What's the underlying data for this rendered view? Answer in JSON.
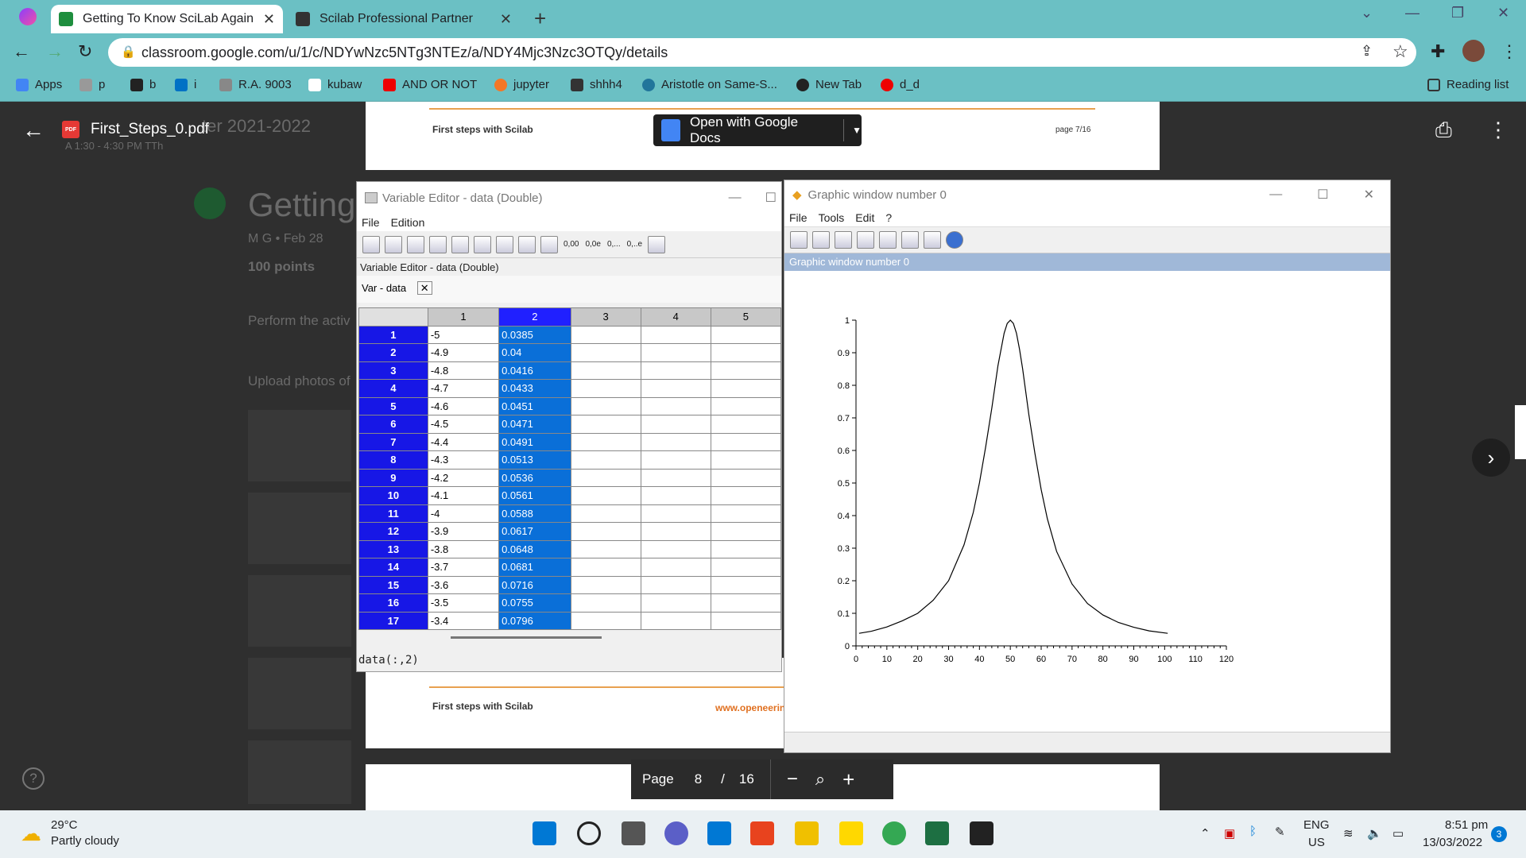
{
  "browser": {
    "tabs": [
      {
        "title": "Getting To Know SciLab Again",
        "active": true
      },
      {
        "title": "Scilab Professional Partner",
        "active": false
      }
    ],
    "url": "classroom.google.com/u/1/c/NDYwNzc5NTg3NTEz/a/NDY4Mjc3Nzc3OTQy/details",
    "bookmarks": [
      "Apps",
      "p",
      "b",
      "i",
      "R.A. 9003",
      "kubaw",
      "AND OR NOT",
      "jupyter",
      "shhh4",
      "Aristotle on Same-S...",
      "New Tab",
      "d_d"
    ],
    "reading_list": "Reading list"
  },
  "classroom": {
    "header_ghost": "ter 2021-2022",
    "header_sub": "A 1:30 - 4:30 PM TTh",
    "title": "Getting",
    "meta": "M G • Feb 28",
    "points": "100 points",
    "instr1": "Perform the activ",
    "instr2": "Upload photos of"
  },
  "pdf": {
    "filename": "First_Steps_0.pdf",
    "open_with": "Open with Google Docs",
    "page_header_left": "First steps with Scilab",
    "page_header_right": "page 7/16",
    "page_footer_left": "First steps with Scilab",
    "page_footer_right": "www.openeerin",
    "page_label": "Page",
    "page_current": "8",
    "page_sep": "/",
    "page_total": "16"
  },
  "variable_editor": {
    "title": "Variable Editor - data  (Double)",
    "menu": [
      "File",
      "Edition"
    ],
    "toolbar_text": [
      "0,00",
      "0,0e",
      "0,...",
      "0,..e"
    ],
    "header": "Variable Editor - data  (Double)",
    "tab": "Var - data",
    "columns": [
      "1",
      "2",
      "3",
      "4",
      "5"
    ],
    "rows": [
      {
        "r": "1",
        "c1": "-5",
        "c2": "0.0385"
      },
      {
        "r": "2",
        "c1": "-4.9",
        "c2": "0.04"
      },
      {
        "r": "3",
        "c1": "-4.8",
        "c2": "0.0416"
      },
      {
        "r": "4",
        "c1": "-4.7",
        "c2": "0.0433"
      },
      {
        "r": "5",
        "c1": "-4.6",
        "c2": "0.0451"
      },
      {
        "r": "6",
        "c1": "-4.5",
        "c2": "0.0471"
      },
      {
        "r": "7",
        "c1": "-4.4",
        "c2": "0.0491"
      },
      {
        "r": "8",
        "c1": "-4.3",
        "c2": "0.0513"
      },
      {
        "r": "9",
        "c1": "-4.2",
        "c2": "0.0536"
      },
      {
        "r": "10",
        "c1": "-4.1",
        "c2": "0.0561"
      },
      {
        "r": "11",
        "c1": "-4",
        "c2": "0.0588"
      },
      {
        "r": "12",
        "c1": "-3.9",
        "c2": "0.0617"
      },
      {
        "r": "13",
        "c1": "-3.8",
        "c2": "0.0648"
      },
      {
        "r": "14",
        "c1": "-3.7",
        "c2": "0.0681"
      },
      {
        "r": "15",
        "c1": "-3.6",
        "c2": "0.0716"
      },
      {
        "r": "16",
        "c1": "-3.5",
        "c2": "0.0755"
      },
      {
        "r": "17",
        "c1": "-3.4",
        "c2": "0.0796"
      }
    ],
    "command": "data(:,2)"
  },
  "graphic_window": {
    "title": "Graphic window number 0",
    "menu": [
      "File",
      "Tools",
      "Edit",
      "?"
    ],
    "bar": "Graphic window number 0"
  },
  "chart_data": {
    "type": "line",
    "title": "",
    "xlabel": "",
    "ylabel": "",
    "xlim": [
      0,
      120
    ],
    "ylim": [
      0,
      1
    ],
    "xticks": [
      "0",
      "10",
      "20",
      "30",
      "40",
      "50",
      "60",
      "70",
      "80",
      "90",
      "100",
      "110",
      "120"
    ],
    "yticks": [
      "0",
      "0.1",
      "0.2",
      "0.3",
      "0.4",
      "0.5",
      "0.6",
      "0.7",
      "0.8",
      "0.9",
      "1"
    ],
    "grid": false,
    "series": [
      {
        "x": [
          1,
          5,
          10,
          15,
          20,
          25,
          30,
          35,
          38,
          40,
          42,
          44,
          46,
          48,
          49,
          50,
          51,
          52,
          53,
          54,
          56,
          58,
          60,
          62,
          65,
          70,
          75,
          80,
          85,
          90,
          95,
          101
        ],
        "y": [
          0.0385,
          0.045,
          0.058,
          0.077,
          0.1,
          0.14,
          0.2,
          0.31,
          0.41,
          0.5,
          0.61,
          0.73,
          0.86,
          0.96,
          0.99,
          1.0,
          0.99,
          0.96,
          0.91,
          0.85,
          0.71,
          0.59,
          0.48,
          0.39,
          0.29,
          0.19,
          0.13,
          0.095,
          0.072,
          0.057,
          0.046,
          0.0385
        ]
      }
    ]
  },
  "taskbar": {
    "temp": "29°C",
    "weather": "Partly cloudy",
    "lang1": "ENG",
    "lang2": "US",
    "time": "8:51 pm",
    "date": "13/03/2022",
    "notif": "3"
  }
}
